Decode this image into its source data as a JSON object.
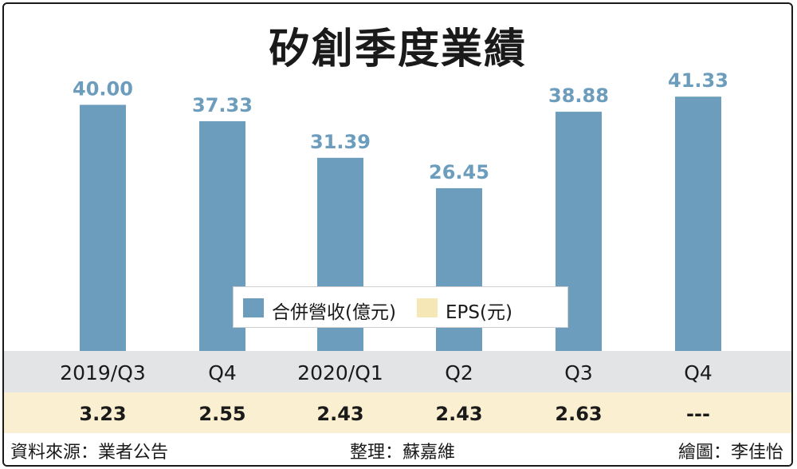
{
  "chart_data": {
    "type": "bar",
    "title": "矽創季度業績",
    "categories": [
      "2019/Q3",
      "Q4",
      "2020/Q1",
      "Q2",
      "Q3",
      "Q4"
    ],
    "series": [
      {
        "name": "合併營收(億元)",
        "values": [
          40.0,
          37.33,
          31.39,
          26.45,
          38.88,
          41.33
        ],
        "labels": [
          "40.00",
          "37.33",
          "31.39",
          "26.45",
          "38.88",
          "41.33"
        ],
        "color": "#6d9dbd"
      },
      {
        "name": "EPS(元)",
        "values": [
          3.23,
          2.55,
          2.43,
          2.43,
          2.63,
          null
        ],
        "labels": [
          "3.23",
          "2.55",
          "2.43",
          "2.43",
          "2.63",
          "---"
        ],
        "color": "#f6e7b6"
      }
    ],
    "ylim": [
      0,
      42
    ],
    "grid": false,
    "legend_position": "bottom-center"
  },
  "footer": {
    "source": "資料來源：業者公告",
    "editor": "整理：蘇嘉維",
    "artist": "繪圖：李佳怡"
  },
  "colors": {
    "bar": "#6d9dbd",
    "value_label": "#6d9dbd",
    "category_band": "#e3e4e6",
    "eps_band": "#faefd0"
  }
}
